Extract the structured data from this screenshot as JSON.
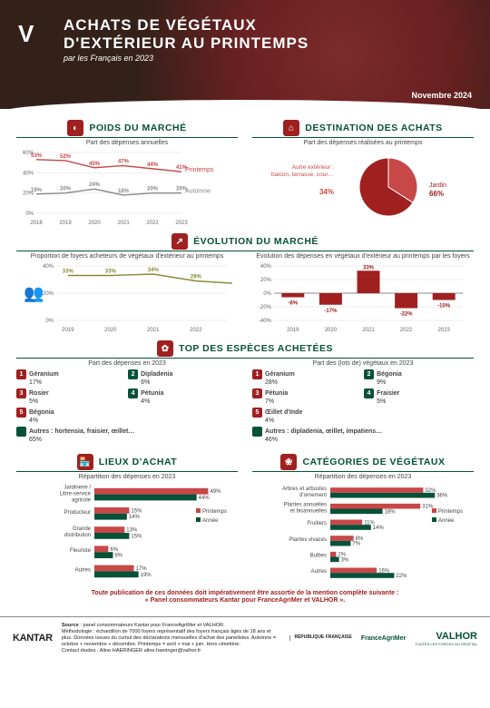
{
  "meta": {
    "title_l1": "ACHATS DE VÉGÉTAUX",
    "title_l2": "D'EXTÉRIEUR AU PRINTEMPS",
    "subtitle": "par les Français en 2023",
    "date": "Novembre 2024"
  },
  "colors": {
    "green": "#065238",
    "red": "#a02020",
    "red2": "#c84747",
    "grey": "#888888",
    "olive": "#8a8a3a"
  },
  "poids": {
    "title": "POIDS DU MARCHÉ",
    "sub": "Part des dépenses annuelles",
    "years": [
      "2018",
      "2019",
      "2020",
      "2021",
      "2022",
      "2023"
    ],
    "printemps": [
      53,
      52,
      45,
      47,
      44,
      41
    ],
    "automne": [
      19,
      20,
      24,
      18,
      20,
      20
    ],
    "ylim": [
      0,
      60
    ],
    "ytick": 20,
    "line1_color": "#c84747",
    "line2_color": "#888888",
    "label1": "Printemps",
    "label2": "Automne"
  },
  "destination": {
    "title": "DESTINATION DES ACHATS",
    "sub": "Part des dépenses réalisées au printemps",
    "jardin": 66,
    "autre": 34,
    "jardin_label": "Jardin",
    "autre_label": "Autre extérieur : balcon, terrasse, cour…",
    "jardin_color": "#a02020",
    "autre_color": "#c84747"
  },
  "evolution": {
    "title": "ÉVOLUTION DU MARCHÉ",
    "left_sub": "Proportion de foyers acheteurs de végétaux d'extérieur au printemps",
    "right_sub": "Evolution des dépenses en végétaux d'extérieur au printemps par les foyers",
    "years": [
      "2019",
      "2020",
      "2021",
      "2022",
      "2023"
    ],
    "prop": [
      33,
      33,
      34,
      29,
      27
    ],
    "prop_color": "#8a8a3a",
    "yleft_lim": [
      0,
      40
    ],
    "yleft_tick": 20,
    "dep": [
      -6,
      -17,
      33,
      -22,
      -10
    ],
    "dep_color": "#a02020",
    "yr_lim": [
      -40,
      40
    ],
    "yr_tick": 20
  },
  "species": {
    "title": "TOP DES ESPÈCES ACHETÉES",
    "left_sub": "Part des dépenses en 2023",
    "right_sub": "Part des (lots de) végétaux en 2023",
    "left": [
      {
        "r": 1,
        "n": "Géranium",
        "p": "17%",
        "c": "#a02020"
      },
      {
        "r": 2,
        "n": "Dipladenia",
        "p": "6%",
        "c": "#065238"
      },
      {
        "r": 3,
        "n": "Rosier",
        "p": "5%",
        "c": "#a02020"
      },
      {
        "r": 4,
        "n": "Pétunia",
        "p": "4%",
        "c": "#065238"
      },
      {
        "r": 5,
        "n": "Bégonia",
        "p": "4%",
        "c": "#a02020"
      },
      {
        "r": 0,
        "n": "Autres : hortensia, fraisier, œillet…",
        "p": "65%",
        "c": "#065238"
      }
    ],
    "right": [
      {
        "r": 1,
        "n": "Géranium",
        "p": "28%",
        "c": "#a02020"
      },
      {
        "r": 2,
        "n": "Bégonia",
        "p": "9%",
        "c": "#065238"
      },
      {
        "r": 3,
        "n": "Pétunia",
        "p": "7%",
        "c": "#a02020"
      },
      {
        "r": 4,
        "n": "Fraisier",
        "p": "5%",
        "c": "#065238"
      },
      {
        "r": 5,
        "n": "Œillet d'Inde",
        "p": "4%",
        "c": "#a02020"
      },
      {
        "r": 0,
        "n": "Autres : dipladenia, œillet, impatiens…",
        "p": "46%",
        "c": "#065238"
      }
    ]
  },
  "lieux": {
    "title": "LIEUX D'ACHAT",
    "sub": "Répartition des dépenses en 2023",
    "cats": [
      "Jardinerie / Libre-service agricole",
      "Producteur",
      "Grande distribution",
      "Fleuriste",
      "Autres"
    ],
    "printemps": [
      49,
      15,
      13,
      6,
      17
    ],
    "annee": [
      44,
      14,
      15,
      8,
      19
    ],
    "c1": "#c84747",
    "c2": "#065238",
    "xlim": 50,
    "l1": "Printemps",
    "l2": "Année"
  },
  "categories": {
    "title": "CATÉGORIES DE VÉGÉTAUX",
    "sub": "Répartition des dépenses en 2023",
    "cats": [
      "Arbres et arbustes d'ornement",
      "Plantes annuelles et bisannuelles",
      "Fruitiers",
      "Plantes vivaces",
      "Bulbes",
      "Autres"
    ],
    "printemps": [
      32,
      31,
      11,
      8,
      2,
      16
    ],
    "annee": [
      36,
      18,
      14,
      7,
      3,
      22
    ],
    "c1": "#c84747",
    "c2": "#065238",
    "xlim": 40,
    "l1": "Printemps",
    "l2": "Année"
  },
  "footer": {
    "note_l1": "Toute publication de ces données doit impérativement être assortie de la mention complète suivante :",
    "note_l2": "« Panel consommateurs Kantar pour FranceAgriMer et VALHOR ».",
    "kantar": "KANTAR",
    "source": "Source : panel consommateurs Kantar pour FranceAgriMer et VALHOR.\nMéthodologie : échantillon de 7000 foyers représentatif des foyers français âgés de 18 ans et plus. Données issues du cumul des déclarations mensuelles d'achat des panelistes. Automne = octobre + novembre + décembre. Printemps = avril + mai + juin. Hors cimetière.\nContact études : Aline HAERINGER aline.haeringer@valhor.fr",
    "rf": "RÉPUBLIQUE FRANÇAISE",
    "fam": "FranceAgriMer",
    "valhor": "VALHOR",
    "valhor_sub": "TOUTES LES FORCES DU VÉGÉTAL"
  }
}
